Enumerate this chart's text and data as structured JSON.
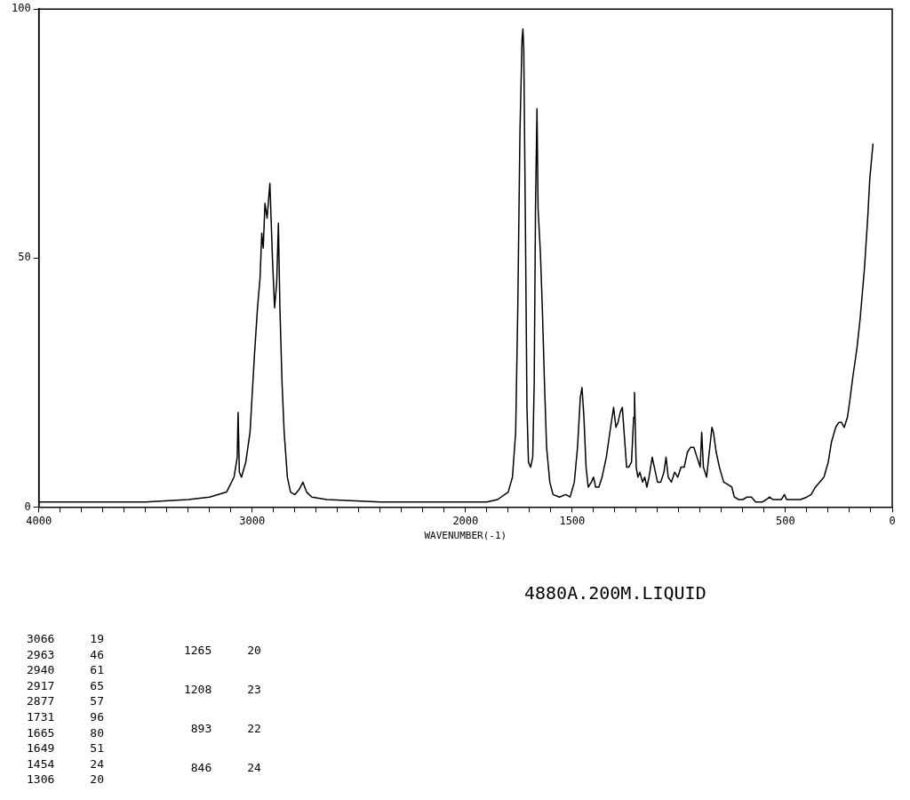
{
  "chart_data": {
    "type": "line",
    "xlabel": "WAVENUMBER(-1)",
    "xlim": [
      4000,
      0
    ],
    "xticks": [
      4000,
      {
        "value": 3900,
        "label": null
      },
      {
        "value": 3800,
        "label": null
      },
      {
        "value": 3700,
        "label": null
      },
      {
        "value": 3600,
        "label": null
      },
      {
        "value": 3500,
        "label": null
      },
      {
        "value": 3400,
        "label": null
      },
      {
        "value": 3300,
        "label": null
      },
      {
        "value": 3200,
        "label": null
      },
      {
        "value": 3100,
        "label": null
      },
      3000,
      {
        "value": 2900,
        "label": null
      },
      {
        "value": 2800,
        "label": null
      },
      {
        "value": 2700,
        "label": null
      },
      {
        "value": 2600,
        "label": null
      },
      {
        "value": 2500,
        "label": null
      },
      {
        "value": 2400,
        "label": null
      },
      {
        "value": 2300,
        "label": null
      },
      {
        "value": 2200,
        "label": null
      },
      {
        "value": 2100,
        "label": null
      },
      2000,
      {
        "value": 1900,
        "label": null
      },
      {
        "value": 1800,
        "label": null
      },
      {
        "value": 1700,
        "label": null
      },
      {
        "value": 1600,
        "label": null
      },
      1500,
      {
        "value": 1400,
        "label": null
      },
      {
        "value": 1300,
        "label": null
      },
      {
        "value": 1200,
        "label": null
      },
      {
        "value": 1100,
        "label": null
      },
      {
        "value": 1000,
        "label": null
      },
      {
        "value": 900,
        "label": null
      },
      {
        "value": 800,
        "label": null
      },
      {
        "value": 700,
        "label": null
      },
      {
        "value": 600,
        "label": null
      },
      500,
      {
        "value": 400,
        "label": null
      },
      {
        "value": 300,
        "label": null
      },
      {
        "value": 200,
        "label": null
      },
      {
        "value": 100,
        "label": null
      },
      0
    ],
    "ylim": [
      0,
      100
    ],
    "yticks": [
      0,
      50,
      100
    ],
    "grid": false,
    "legend": false,
    "marker": "none",
    "line_style": "solid",
    "x": [
      4000,
      3500,
      3300,
      3200,
      3120,
      3085,
      3070,
      3066,
      3060,
      3050,
      3030,
      3010,
      2990,
      2975,
      2963,
      2955,
      2948,
      2940,
      2930,
      2917,
      2905,
      2895,
      2885,
      2877,
      2870,
      2860,
      2850,
      2835,
      2820,
      2800,
      2780,
      2762,
      2745,
      2720,
      2650,
      2400,
      2100,
      1900,
      1850,
      1800,
      1780,
      1765,
      1755,
      1745,
      1735,
      1731,
      1727,
      1720,
      1712,
      1705,
      1695,
      1685,
      1678,
      1672,
      1665,
      1660,
      1649,
      1640,
      1630,
      1620,
      1605,
      1590,
      1560,
      1530,
      1510,
      1490,
      1475,
      1462,
      1454,
      1445,
      1435,
      1425,
      1410,
      1400,
      1390,
      1375,
      1360,
      1340,
      1320,
      1306,
      1295,
      1285,
      1275,
      1265,
      1255,
      1245,
      1235,
      1222,
      1212,
      1208,
      1200,
      1192,
      1183,
      1170,
      1160,
      1150,
      1140,
      1125,
      1115,
      1100,
      1085,
      1070,
      1060,
      1050,
      1035,
      1020,
      1005,
      990,
      975,
      960,
      945,
      930,
      915,
      900,
      893,
      885,
      870,
      860,
      845,
      838,
      825,
      810,
      790,
      770,
      752,
      740,
      720,
      700,
      680,
      660,
      640,
      610,
      590,
      575,
      560,
      540,
      520,
      505,
      495,
      460,
      430,
      400,
      380,
      360,
      340,
      320,
      300,
      285,
      265,
      250,
      238,
      225,
      210,
      200,
      185,
      165,
      150,
      130,
      115,
      105,
      90
    ],
    "series": [
      {
        "color": "#000000",
        "values": [
          1,
          1,
          1.5,
          2,
          3,
          6,
          10,
          19,
          7,
          6,
          9,
          15,
          30,
          40,
          46,
          55,
          52,
          61,
          58,
          65,
          50,
          40,
          45,
          57,
          40,
          25,
          15,
          6,
          3,
          2.5,
          3.5,
          5,
          3,
          2,
          1.5,
          1,
          1,
          1,
          1.5,
          3,
          6,
          15,
          40,
          75,
          94,
          96,
          92,
          60,
          20,
          9,
          8,
          10,
          25,
          60,
          80,
          60,
          51,
          40,
          25,
          12,
          5,
          2.5,
          2,
          2.5,
          2,
          5,
          12,
          22,
          24,
          18,
          8,
          4,
          5,
          6,
          4,
          4,
          6,
          10,
          16,
          20,
          16,
          17,
          19,
          20,
          14,
          8,
          8,
          9,
          18,
          23,
          8,
          6,
          7,
          5,
          6,
          4,
          6,
          10,
          8,
          5,
          5,
          7,
          10,
          6,
          5,
          7,
          6,
          8,
          8,
          11,
          12,
          12,
          10,
          8,
          15,
          8,
          6,
          10,
          16,
          15,
          11,
          8,
          5,
          4.5,
          4,
          2,
          1.5,
          1.5,
          2,
          2,
          1,
          1,
          1.5,
          2,
          1.5,
          1.5,
          1.5,
          2.5,
          1.5,
          1.5,
          1.5,
          2,
          2.5,
          4,
          5,
          6,
          9,
          13,
          16,
          17,
          17,
          16,
          18,
          21,
          26,
          32,
          38,
          48,
          58,
          66,
          73
        ]
      }
    ],
    "annotations": [
      "4880A.200M.LIQUID",
      "3066 19",
      "2963 46",
      "2940 61",
      "2917 65",
      "2877 57",
      "1731 96",
      "1665 80",
      "1649 51",
      "1454 24",
      "1306 20",
      "1265 20",
      "1208 23",
      "893 22",
      "846 24"
    ]
  }
}
